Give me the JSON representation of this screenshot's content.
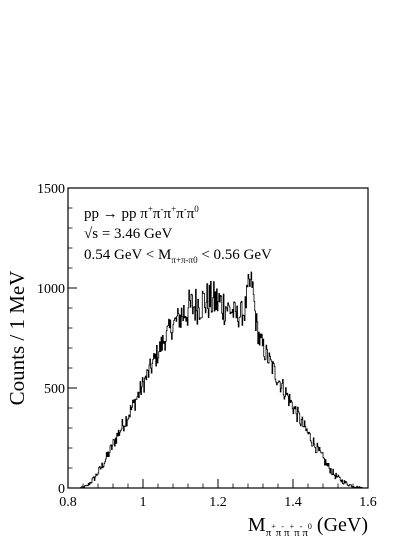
{
  "chart_data": {
    "type": "line",
    "title": "",
    "xlabel": "M_{π+π−π+π−π0} (GeV)",
    "ylabel": "Counts / 1 MeV",
    "xlim": [
      0.8,
      1.6
    ],
    "ylim": [
      0,
      1500
    ],
    "x_ticks": [
      0.8,
      1,
      1.2,
      1.4,
      1.6
    ],
    "x_tick_labels": [
      "0.8",
      "1",
      "1.2",
      "1.4",
      "1.6"
    ],
    "y_ticks": [
      0,
      500,
      1000,
      1500
    ],
    "y_tick_labels": [
      "0",
      "500",
      "1000",
      "1500"
    ],
    "grid": false,
    "legend": "none",
    "line_color": "#000000",
    "annotations": {
      "reaction": {
        "base": "pp → pp π",
        "sup1": "+",
        "mid1": "π",
        "sup2": "-",
        "mid2": "π",
        "sup3": "+",
        "mid3": "π",
        "sup4": "-",
        "mid4": "π",
        "sup5": "0"
      },
      "energy": "√s = 3.46 GeV",
      "mass_cut": {
        "pre": "0.54 GeV < M",
        "sub": "π+π-π0",
        "post": " < 0.56 GeV"
      }
    },
    "series": [
      {
        "x": [
          0.83,
          0.85,
          0.87,
          0.89,
          0.91,
          0.93,
          0.95,
          0.97,
          0.99,
          1.01,
          1.03,
          1.05,
          1.07,
          1.09,
          1.11,
          1.13,
          1.15,
          1.17,
          1.19,
          1.21,
          1.23,
          1.25,
          1.27,
          1.28,
          1.29,
          1.3,
          1.31,
          1.33,
          1.35,
          1.37,
          1.39,
          1.41,
          1.43,
          1.45,
          1.47,
          1.49,
          1.51,
          1.53,
          1.55,
          1.57,
          1.59,
          1.6
        ],
        "y": [
          0,
          10,
          50,
          110,
          180,
          260,
          330,
          400,
          480,
          560,
          640,
          720,
          790,
          840,
          880,
          905,
          925,
          935,
          935,
          920,
          895,
          860,
          880,
          1000,
          1030,
          840,
          740,
          660,
          580,
          510,
          440,
          370,
          300,
          240,
          175,
          115,
          65,
          35,
          15,
          5,
          0,
          0
        ]
      }
    ]
  }
}
